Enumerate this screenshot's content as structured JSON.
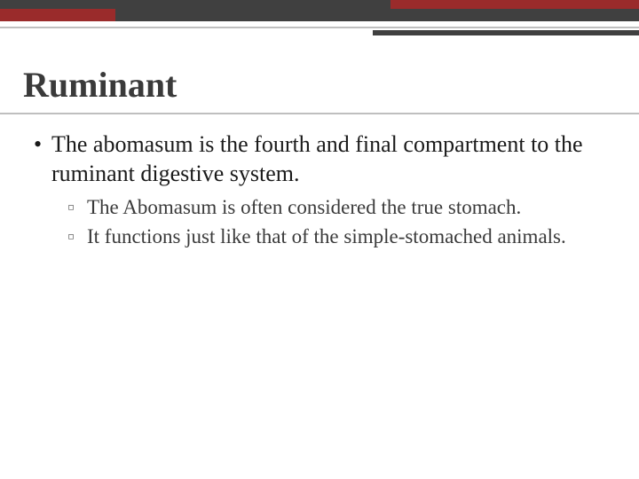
{
  "colors": {
    "dark_gray": "#404040",
    "maroon": "#9a2b2b",
    "light_gray_rule": "#bfbfbf",
    "title_color": "#3a3a3a",
    "body_color": "#1a1a1a",
    "sub_color": "#3a3a3a",
    "background": "#ffffff"
  },
  "layout": {
    "slide_width": 720,
    "slide_height": 540,
    "top_row1_height": 10,
    "top_row1_left_width": 440,
    "top_row1_right_width": 280,
    "top_row2_height": 14,
    "top_row2_left_width": 130,
    "top_row2_right_width": 590,
    "right_accent_bar_width": 300
  },
  "typography": {
    "title_fontsize": 40,
    "body_fontsize": 26,
    "sub_fontsize": 23,
    "font_family": "Georgia, Times New Roman, serif"
  },
  "title": "Ruminant",
  "bullets": [
    {
      "marker": "•",
      "text": "The abomasum is the fourth and final compartment to the ruminant digestive system.",
      "children": [
        {
          "marker": "▫",
          "text": "The Abomasum is often considered the true stomach."
        },
        {
          "marker": "▫",
          "text": "It functions just like that of the simple-stomached animals."
        }
      ]
    }
  ]
}
